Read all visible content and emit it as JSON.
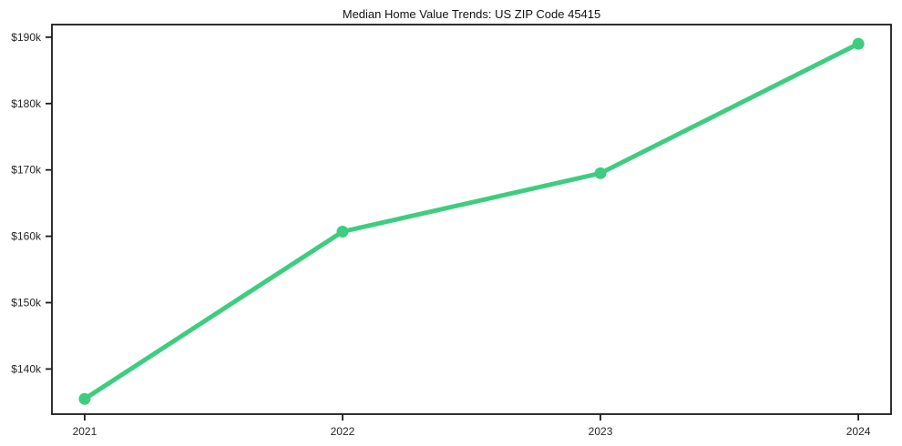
{
  "title": "Median Home Value Trends: US ZIP Code 45415",
  "colors": {
    "line": "#3ecd80",
    "marker": "#3ecd80",
    "axis": "#1a1a1a",
    "tick_label": "#262626",
    "background": "#ffffff"
  },
  "chart_data": {
    "type": "line",
    "title": "Median Home Value Trends: US ZIP Code 45415",
    "xlabel": "",
    "ylabel": "",
    "categories": [
      "2021",
      "2022",
      "2023",
      "2024"
    ],
    "series": [
      {
        "name": "Median Home Value",
        "values": [
          135500,
          160700,
          169500,
          189000
        ]
      }
    ],
    "ylim": [
      133200,
      191900
    ],
    "yticks": [
      140000,
      150000,
      160000,
      170000,
      180000,
      190000
    ],
    "ytick_labels": [
      "$140k",
      "$150k",
      "$160k",
      "$170k",
      "$180k",
      "$190k"
    ],
    "grid": false,
    "legend": "none",
    "marker_style": "circle",
    "line_width": 5,
    "marker_radius": 6.5
  }
}
